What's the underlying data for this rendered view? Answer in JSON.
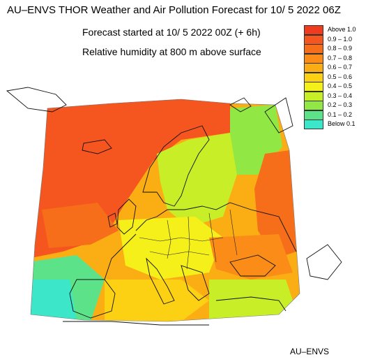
{
  "title": "AU–ENVS THOR Weather and Air Pollution Forecast for 10/ 5 2022  06Z",
  "subtitle": "Forecast started at 10/ 5 2022  00Z (+ 6h)",
  "field": "Relative humidity at 800 m above surface",
  "footer": "AU–ENVS",
  "legend": [
    {
      "label": "Above   1.0",
      "color": "#f03c1e"
    },
    {
      "label": "0.9  –  1.0",
      "color": "#f5551e"
    },
    {
      "label": "0.8  –  0.9",
      "color": "#f76e1a"
    },
    {
      "label": "0.7  –  0.8",
      "color": "#fa8c17"
    },
    {
      "label": "0.6  –  0.7",
      "color": "#fbae14"
    },
    {
      "label": "0.5  –  0.6",
      "color": "#fcd114"
    },
    {
      "label": "0.4  –  0.5",
      "color": "#f5f019"
    },
    {
      "label": "0.3  –  0.4",
      "color": "#c8ee28"
    },
    {
      "label": "0.2  –  0.3",
      "color": "#91e845"
    },
    {
      "label": "0.1  –  0.2",
      "color": "#5ce38a"
    },
    {
      "label": "Below   0.1",
      "color": "#3ce6c8"
    }
  ],
  "colors": {
    "background": "#ffffff",
    "coastline": "#111111",
    "field_high": "#f5551e",
    "field_mid": "#fbae14",
    "field_low": "#91e845",
    "field_lowest": "#3ce6c8"
  }
}
